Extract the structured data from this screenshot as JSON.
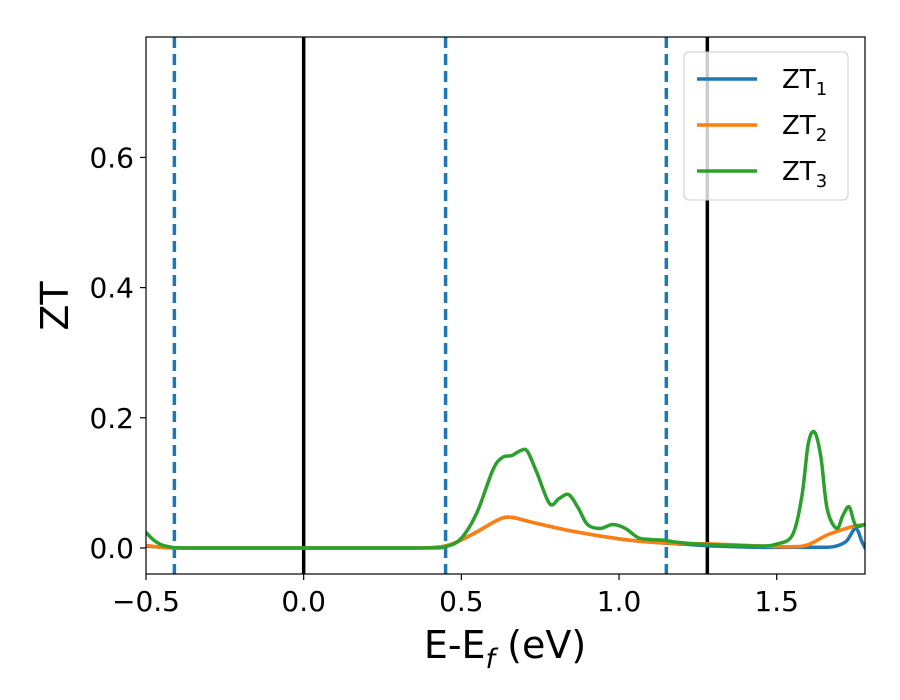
{
  "chart_data": {
    "type": "line",
    "xlabel": {
      "main": "E-E",
      "sub": "f",
      "tail": " (eV)"
    },
    "ylabel": "ZT",
    "xlim": [
      -0.5,
      1.78
    ],
    "ylim": [
      -0.04,
      0.785
    ],
    "xticks": [
      -0.5,
      0.0,
      0.5,
      1.0,
      1.5
    ],
    "xtick_labels": [
      "−0.5",
      "0.0",
      "0.5",
      "1.0",
      "1.5"
    ],
    "yticks": [
      0.0,
      0.2,
      0.4,
      0.6
    ],
    "ytick_labels": [
      "0.0",
      "0.2",
      "0.4",
      "0.6"
    ],
    "grid": false,
    "legend_position": "top-right",
    "vlines": [
      {
        "x": -0.41,
        "style": "dashed",
        "color": "#1f77b4"
      },
      {
        "x": 0.0,
        "style": "solid",
        "color": "#000000"
      },
      {
        "x": 0.45,
        "style": "dashed",
        "color": "#1f77b4"
      },
      {
        "x": 1.15,
        "style": "dashed",
        "color": "#1f77b4"
      },
      {
        "x": 1.28,
        "style": "solid",
        "color": "#000000"
      }
    ],
    "series": [
      {
        "name": "ZT",
        "sub": "1",
        "color": "#1f77b4",
        "x": [
          -0.5,
          -0.45,
          -0.41,
          -0.3,
          0.0,
          0.3,
          0.42,
          0.48,
          0.55,
          0.62,
          0.66,
          0.72,
          0.85,
          1.0,
          1.1,
          1.2,
          1.3,
          1.45,
          1.55,
          1.62,
          1.68,
          1.72,
          1.75,
          1.77,
          1.78
        ],
        "y": [
          0.003,
          0.001,
          0.0,
          0.0,
          0.0,
          0.0,
          0.001,
          0.008,
          0.025,
          0.044,
          0.047,
          0.04,
          0.026,
          0.014,
          0.009,
          0.006,
          0.003,
          0.001,
          0.001,
          0.001,
          0.002,
          0.01,
          0.03,
          0.01,
          0.0
        ]
      },
      {
        "name": "ZT",
        "sub": "2",
        "color": "#ff7f0e",
        "x": [
          -0.5,
          -0.45,
          -0.41,
          -0.3,
          0.0,
          0.3,
          0.42,
          0.48,
          0.55,
          0.62,
          0.66,
          0.72,
          0.85,
          1.0,
          1.1,
          1.2,
          1.3,
          1.45,
          1.55,
          1.6,
          1.66,
          1.72,
          1.75,
          1.78
        ],
        "y": [
          0.004,
          0.001,
          0.0,
          0.0,
          0.0,
          0.0,
          0.001,
          0.008,
          0.025,
          0.044,
          0.047,
          0.04,
          0.026,
          0.014,
          0.009,
          0.007,
          0.006,
          0.003,
          0.002,
          0.005,
          0.02,
          0.03,
          0.034,
          0.036
        ]
      },
      {
        "name": "ZT",
        "sub": "3",
        "color": "#2ca02c",
        "x": [
          -0.5,
          -0.47,
          -0.43,
          -0.35,
          0.0,
          0.38,
          0.45,
          0.5,
          0.55,
          0.6,
          0.63,
          0.66,
          0.69,
          0.71,
          0.74,
          0.78,
          0.81,
          0.84,
          0.87,
          0.9,
          0.94,
          0.98,
          1.02,
          1.06,
          1.1,
          1.14,
          1.18,
          1.25,
          1.35,
          1.45,
          1.5,
          1.55,
          1.58,
          1.6,
          1.62,
          1.64,
          1.66,
          1.69,
          1.71,
          1.73,
          1.75,
          1.78
        ],
        "y": [
          0.024,
          0.01,
          0.002,
          0.0,
          0.0,
          0.0,
          0.002,
          0.015,
          0.055,
          0.12,
          0.139,
          0.142,
          0.15,
          0.148,
          0.115,
          0.068,
          0.076,
          0.082,
          0.062,
          0.036,
          0.03,
          0.036,
          0.03,
          0.016,
          0.013,
          0.012,
          0.009,
          0.006,
          0.004,
          0.003,
          0.006,
          0.02,
          0.08,
          0.16,
          0.178,
          0.14,
          0.06,
          0.03,
          0.05,
          0.063,
          0.035,
          0.036
        ]
      }
    ]
  }
}
